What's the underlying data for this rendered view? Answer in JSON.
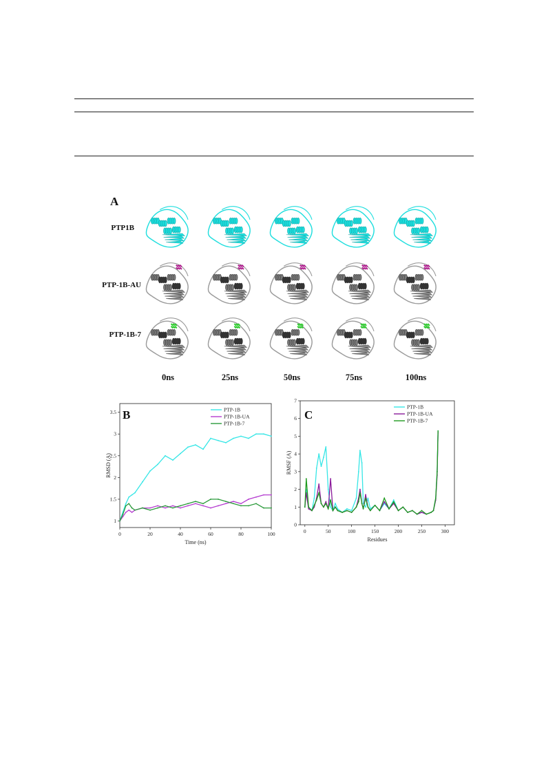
{
  "figure": {
    "panel_a": {
      "letter": "A",
      "rows": [
        {
          "label": "PTP1B",
          "color": "#1fdede",
          "ligand": null
        },
        {
          "label": "PTP-1B-AU",
          "color": "#9a9a9a",
          "ligand": "#b0208f"
        },
        {
          "label": "PTP-1B-7",
          "color": "#9a9a9a",
          "ligand": "#2ecc2e"
        }
      ],
      "times": [
        "0ns",
        "25ns",
        "50ns",
        "75ns",
        "100ns"
      ]
    }
  },
  "chart_data": [
    {
      "type": "line",
      "panel": "B",
      "xlabel": "Time (ns)",
      "ylabel": "RMSD (A)",
      "xlim": [
        0,
        100
      ],
      "ylim": [
        0.85,
        3.7
      ],
      "xticks": [
        0,
        20,
        40,
        60,
        80,
        100
      ],
      "yticks": [
        1.0,
        1.5,
        2.0,
        2.5,
        3.0,
        3.5
      ],
      "legend_position": "top-right",
      "series": [
        {
          "name": "PTP-1B",
          "color": "#35e6e6",
          "x": [
            0,
            2,
            4,
            6,
            8,
            10,
            15,
            20,
            25,
            30,
            35,
            40,
            45,
            50,
            55,
            60,
            65,
            70,
            75,
            80,
            85,
            90,
            95,
            100
          ],
          "y": [
            1.0,
            1.2,
            1.4,
            1.55,
            1.6,
            1.65,
            1.9,
            2.15,
            2.3,
            2.5,
            2.4,
            2.55,
            2.7,
            2.75,
            2.65,
            2.9,
            2.85,
            2.8,
            2.9,
            2.95,
            2.9,
            3.0,
            3.0,
            2.95
          ]
        },
        {
          "name": "PTP-1B-UA",
          "color": "#b43bd0",
          "x": [
            0,
            2,
            4,
            6,
            8,
            10,
            15,
            20,
            25,
            30,
            35,
            40,
            45,
            50,
            55,
            60,
            65,
            70,
            75,
            80,
            85,
            90,
            95,
            100
          ],
          "y": [
            1.0,
            1.1,
            1.2,
            1.25,
            1.2,
            1.25,
            1.3,
            1.3,
            1.35,
            1.3,
            1.35,
            1.3,
            1.35,
            1.4,
            1.35,
            1.3,
            1.35,
            1.4,
            1.45,
            1.4,
            1.5,
            1.55,
            1.6,
            1.6
          ]
        },
        {
          "name": "PTP-1B-7",
          "color": "#2a9a3a",
          "x": [
            0,
            2,
            4,
            6,
            8,
            10,
            15,
            20,
            25,
            30,
            35,
            40,
            45,
            50,
            55,
            60,
            65,
            70,
            75,
            80,
            85,
            90,
            95,
            100
          ],
          "y": [
            1.0,
            1.15,
            1.35,
            1.4,
            1.3,
            1.25,
            1.3,
            1.25,
            1.3,
            1.35,
            1.3,
            1.35,
            1.4,
            1.45,
            1.4,
            1.5,
            1.5,
            1.45,
            1.4,
            1.35,
            1.35,
            1.4,
            1.3,
            1.3
          ]
        }
      ]
    },
    {
      "type": "line",
      "panel": "C",
      "xlabel": "Residues",
      "ylabel": "RMSF (A)",
      "xlim": [
        -10,
        320
      ],
      "ylim": [
        0,
        7
      ],
      "xticks": [
        0,
        50,
        100,
        150,
        200,
        250,
        300
      ],
      "yticks": [
        0,
        1,
        2,
        3,
        4,
        5,
        6,
        7
      ],
      "legend_position": "top-right",
      "series": [
        {
          "name": "PTP-1B",
          "color": "#35e6e6",
          "x": [
            0,
            3,
            8,
            15,
            20,
            25,
            30,
            35,
            40,
            45,
            50,
            55,
            60,
            65,
            70,
            80,
            90,
            100,
            110,
            115,
            118,
            122,
            125,
            130,
            135,
            140,
            150,
            160,
            170,
            180,
            190,
            200,
            210,
            220,
            230,
            240,
            250,
            260,
            270,
            275,
            280,
            283,
            285
          ],
          "y": [
            1.0,
            2.0,
            1.0,
            0.8,
            1.5,
            3.2,
            4.0,
            3.3,
            3.8,
            4.4,
            2.0,
            1.0,
            0.8,
            1.2,
            0.9,
            0.7,
            0.9,
            0.8,
            1.5,
            3.0,
            4.2,
            3.5,
            1.2,
            1.0,
            1.5,
            0.9,
            1.1,
            0.8,
            1.2,
            0.9,
            1.4,
            0.8,
            1.0,
            0.7,
            0.8,
            0.6,
            0.7,
            0.6,
            0.7,
            0.8,
            1.5,
            3.0,
            5.3
          ]
        },
        {
          "name": "PTP-1B-UA",
          "color": "#8a1a9a",
          "x": [
            0,
            3,
            8,
            15,
            20,
            25,
            30,
            35,
            40,
            45,
            50,
            55,
            60,
            65,
            70,
            80,
            90,
            100,
            110,
            115,
            118,
            122,
            125,
            130,
            135,
            140,
            150,
            160,
            170,
            180,
            190,
            200,
            210,
            220,
            230,
            240,
            250,
            260,
            270,
            275,
            280,
            283,
            285
          ],
          "y": [
            1.0,
            1.8,
            0.9,
            0.8,
            1.0,
            1.5,
            2.3,
            1.2,
            1.0,
            1.3,
            0.9,
            2.6,
            0.8,
            1.0,
            0.8,
            0.7,
            0.8,
            0.7,
            1.0,
            1.5,
            2.0,
            1.2,
            0.9,
            1.7,
            1.0,
            0.8,
            1.1,
            0.8,
            1.3,
            0.9,
            1.2,
            0.8,
            1.0,
            0.7,
            0.8,
            0.6,
            0.7,
            0.6,
            0.7,
            0.8,
            1.4,
            2.8,
            5.2
          ]
        },
        {
          "name": "PTP-1B-7",
          "color": "#1e9a1e",
          "x": [
            0,
            3,
            8,
            15,
            20,
            25,
            30,
            35,
            40,
            45,
            50,
            55,
            60,
            65,
            70,
            80,
            90,
            100,
            110,
            115,
            118,
            122,
            125,
            130,
            135,
            140,
            150,
            160,
            170,
            180,
            190,
            200,
            210,
            220,
            230,
            240,
            250,
            260,
            270,
            275,
            280,
            283,
            285
          ],
          "y": [
            1.0,
            2.6,
            1.0,
            0.8,
            1.1,
            1.4,
            1.8,
            1.2,
            1.0,
            1.2,
            0.9,
            1.4,
            0.8,
            1.0,
            0.8,
            0.7,
            0.8,
            0.7,
            1.0,
            1.3,
            1.8,
            1.2,
            0.9,
            1.5,
            1.0,
            0.8,
            1.1,
            0.8,
            1.5,
            0.9,
            1.3,
            0.8,
            1.0,
            0.7,
            0.8,
            0.6,
            0.8,
            0.6,
            0.7,
            0.8,
            1.5,
            3.0,
            5.3
          ]
        }
      ]
    }
  ]
}
